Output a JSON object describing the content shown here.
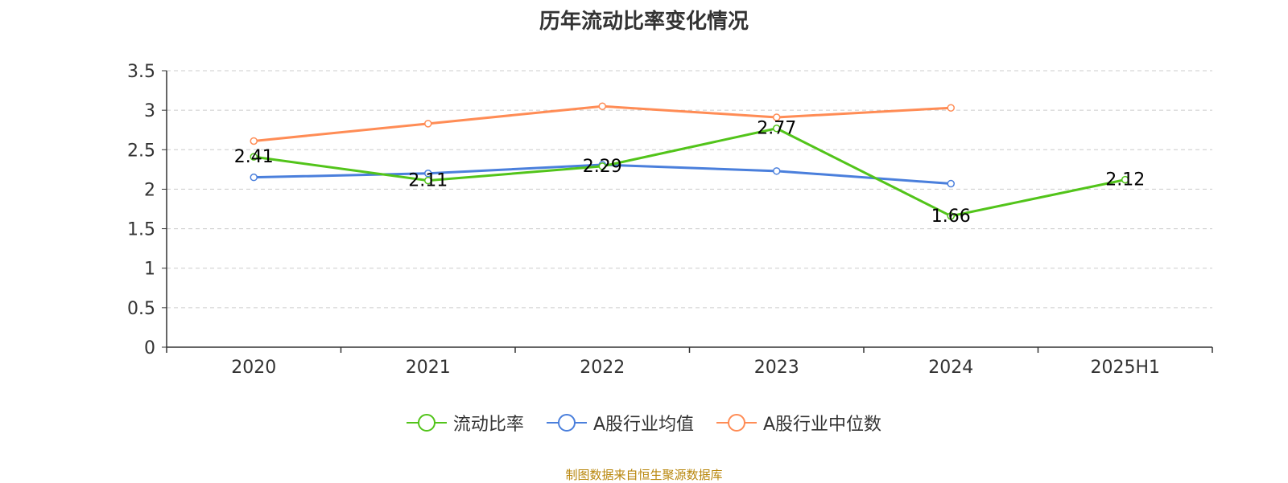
{
  "chart_data": {
    "type": "line",
    "title": "历年流动比率变化情况",
    "categories": [
      "2020",
      "2021",
      "2022",
      "2023",
      "2024",
      "2025H1"
    ],
    "ylim": [
      0,
      3.5
    ],
    "yticks": [
      "0",
      "0.5",
      "1",
      "1.5",
      "2",
      "2.5",
      "3",
      "3.5"
    ],
    "grid": true,
    "legend_position": "bottom",
    "series": [
      {
        "name": "流动比率",
        "color": "#52c41a",
        "show_labels": true,
        "values": [
          2.41,
          2.11,
          2.29,
          2.77,
          1.66,
          2.12
        ],
        "labels": [
          "2.41",
          "2.11",
          "2.29",
          "2.77",
          "1.66",
          "2.12"
        ]
      },
      {
        "name": "A股行业均值",
        "color": "#4a7fdc",
        "show_labels": false,
        "values": [
          2.15,
          2.2,
          2.31,
          2.23,
          2.07,
          null
        ]
      },
      {
        "name": "A股行业中位数",
        "color": "#ff8c55",
        "show_labels": false,
        "values": [
          2.61,
          2.83,
          3.05,
          2.91,
          3.03,
          null
        ]
      }
    ]
  },
  "source_text": "制图数据来自恒生聚源数据库"
}
